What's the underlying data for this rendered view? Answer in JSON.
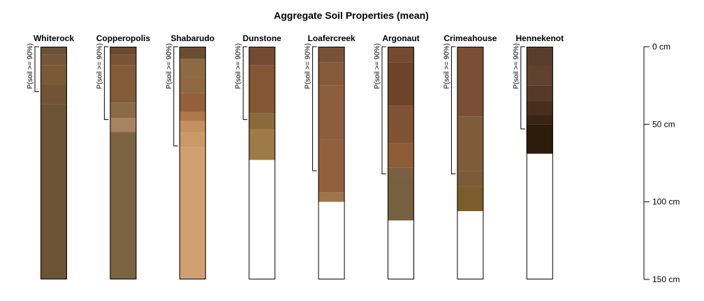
{
  "chart_data": {
    "type": "soil-profile",
    "title": "Aggregate Soil Properties (mean)",
    "depth_unit": "cm",
    "depth_range": [
      0,
      150
    ],
    "depth_ticks": [
      {
        "value": 0,
        "label": "0 cm"
      },
      {
        "value": 50,
        "label": "50 cm"
      },
      {
        "value": 100,
        "label": "100 cm"
      },
      {
        "value": 150,
        "label": "150 cm"
      }
    ],
    "bracket_label": "P(soil >= 90%)",
    "profiles": [
      {
        "name": "Whiterock",
        "soil_depth": 150,
        "p90_depth": 29,
        "layers": [
          {
            "top": 0,
            "bottom": 5,
            "color": "#6b5236"
          },
          {
            "top": 5,
            "bottom": 12,
            "color": "#755638"
          },
          {
            "top": 12,
            "bottom": 24,
            "color": "#7a5937"
          },
          {
            "top": 24,
            "bottom": 37,
            "color": "#705434"
          },
          {
            "top": 37,
            "bottom": 150,
            "color": "#6b5434"
          }
        ]
      },
      {
        "name": "Copperopolis",
        "soil_depth": 150,
        "p90_depth": 47,
        "layers": [
          {
            "top": 0,
            "bottom": 5,
            "color": "#6a4a30"
          },
          {
            "top": 5,
            "bottom": 12,
            "color": "#7a5334"
          },
          {
            "top": 12,
            "bottom": 36,
            "color": "#835b37"
          },
          {
            "top": 36,
            "bottom": 46,
            "color": "#8a6a47"
          },
          {
            "top": 46,
            "bottom": 55,
            "color": "#a88360"
          },
          {
            "top": 55,
            "bottom": 150,
            "color": "#7d6440"
          }
        ]
      },
      {
        "name": "Shabarudo",
        "soil_depth": 150,
        "p90_depth": 64,
        "layers": [
          {
            "top": 0,
            "bottom": 8,
            "color": "#6a4e32"
          },
          {
            "top": 8,
            "bottom": 20,
            "color": "#8c6b42"
          },
          {
            "top": 20,
            "bottom": 30,
            "color": "#8d6840"
          },
          {
            "top": 30,
            "bottom": 42,
            "color": "#94603c"
          },
          {
            "top": 42,
            "bottom": 48,
            "color": "#b0774a"
          },
          {
            "top": 48,
            "bottom": 55,
            "color": "#c3905f"
          },
          {
            "top": 55,
            "bottom": 65,
            "color": "#c99a66"
          },
          {
            "top": 65,
            "bottom": 150,
            "color": "#d0a070"
          }
        ]
      },
      {
        "name": "Dunstone",
        "soil_depth": 73,
        "p90_depth": 47,
        "layers": [
          {
            "top": 0,
            "bottom": 12,
            "color": "#744b32"
          },
          {
            "top": 12,
            "bottom": 43,
            "color": "#845634"
          },
          {
            "top": 43,
            "bottom": 53,
            "color": "#8a6a3c"
          },
          {
            "top": 53,
            "bottom": 73,
            "color": "#9e7a48"
          }
        ]
      },
      {
        "name": "Loafercreek",
        "soil_depth": 100,
        "p90_depth": 80,
        "layers": [
          {
            "top": 0,
            "bottom": 10,
            "color": "#7a5236"
          },
          {
            "top": 10,
            "bottom": 25,
            "color": "#86593a"
          },
          {
            "top": 25,
            "bottom": 60,
            "color": "#8d5d3c"
          },
          {
            "top": 60,
            "bottom": 94,
            "color": "#93603e"
          },
          {
            "top": 94,
            "bottom": 100,
            "color": "#9e7448"
          }
        ]
      },
      {
        "name": "Argonaut",
        "soil_depth": 112,
        "p90_depth": 82,
        "layers": [
          {
            "top": 0,
            "bottom": 10,
            "color": "#744a30"
          },
          {
            "top": 10,
            "bottom": 38,
            "color": "#6e4428"
          },
          {
            "top": 38,
            "bottom": 62,
            "color": "#7e5232"
          },
          {
            "top": 62,
            "bottom": 78,
            "color": "#8c5c36"
          },
          {
            "top": 78,
            "bottom": 86,
            "color": "#7a6040"
          },
          {
            "top": 86,
            "bottom": 112,
            "color": "#756040"
          }
        ]
      },
      {
        "name": "Crimeahouse",
        "soil_depth": 106,
        "p90_depth": 82,
        "layers": [
          {
            "top": 0,
            "bottom": 45,
            "color": "#7a4f36"
          },
          {
            "top": 45,
            "bottom": 80,
            "color": "#7f5a3b"
          },
          {
            "top": 80,
            "bottom": 90,
            "color": "#7a5a38"
          },
          {
            "top": 90,
            "bottom": 106,
            "color": "#7d5c2c"
          }
        ]
      },
      {
        "name": "Hennekenot",
        "soil_depth": 69,
        "p90_depth": 53,
        "layers": [
          {
            "top": 0,
            "bottom": 13,
            "color": "#5a3e2c"
          },
          {
            "top": 13,
            "bottom": 25,
            "color": "#5f412d"
          },
          {
            "top": 25,
            "bottom": 35,
            "color": "#57392a"
          },
          {
            "top": 35,
            "bottom": 44,
            "color": "#4a2e1c"
          },
          {
            "top": 44,
            "bottom": 50,
            "color": "#3a2414"
          },
          {
            "top": 50,
            "bottom": 69,
            "color": "#2e1c0a"
          }
        ]
      }
    ]
  }
}
